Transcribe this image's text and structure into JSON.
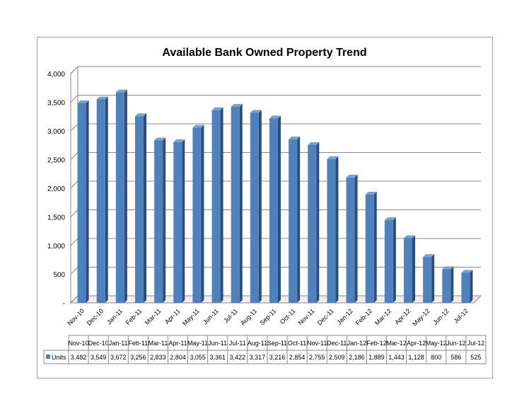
{
  "chart_data": {
    "type": "bar",
    "title": "Available Bank Owned Property Trend",
    "xlabel": "",
    "ylabel": "",
    "ylim": [
      0,
      4000
    ],
    "yticks": [
      0,
      500,
      1000,
      1500,
      2000,
      2500,
      3000,
      3500,
      4000
    ],
    "ytick_labels": [
      "-",
      "500",
      "1,000",
      "1,500",
      "2,000",
      "2,500",
      "3,000",
      "3,500",
      "4,000"
    ],
    "grid": true,
    "legend": "data-table",
    "categories": [
      "Nov-10",
      "Dec-10",
      "Jan-11",
      "Feb-11",
      "Mar-11",
      "Apr-11",
      "May-11",
      "Jun-11",
      "Jul-11",
      "Aug-11",
      "Sep-11",
      "Oct-11",
      "Nov-11",
      "Dec-11",
      "Jan-12",
      "Feb-12",
      "Mar-12",
      "Apr-12",
      "May-12",
      "Jun-12",
      "Jul-12"
    ],
    "series": [
      {
        "name": "Units",
        "color": "#4f81bd",
        "values": [
          3482,
          3549,
          3672,
          3256,
          2833,
          2804,
          3055,
          3361,
          3422,
          3317,
          3216,
          2854,
          2755,
          2509,
          2186,
          1889,
          1443,
          1128,
          800,
          586,
          525
        ],
        "value_labels": [
          "3,482",
          "3,549",
          "3,672",
          "3,256",
          "2,833",
          "2,804",
          "3,055",
          "3,361",
          "3,422",
          "3,317",
          "3,216",
          "2,854",
          "2,755",
          "2,509",
          "2,186",
          "1,889",
          "1,443",
          "1,128",
          "800",
          "586",
          "525"
        ]
      }
    ]
  }
}
